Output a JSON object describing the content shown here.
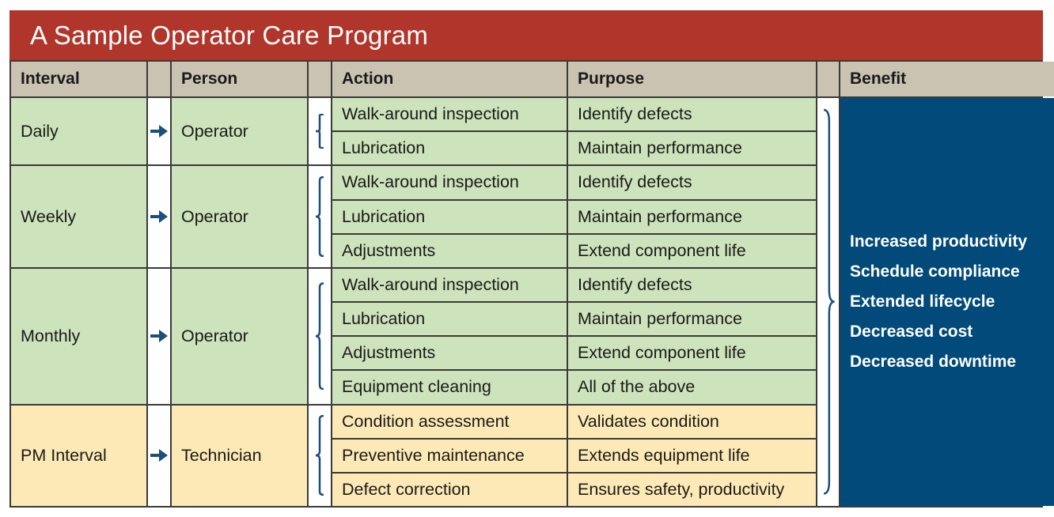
{
  "title": "A Sample Operator Care Program",
  "headers": {
    "interval": "Interval",
    "person": "Person",
    "action": "Action",
    "purpose": "Purpose",
    "benefit": "Benefit"
  },
  "colors": {
    "title_bar": "#b0352b",
    "header": "#cbc3b1",
    "operator_rows": "#cde3bb",
    "technician_rows": "#fde9b5",
    "benefit": "#024a7a",
    "icons": "#1d4f7c"
  },
  "groups": [
    {
      "interval": "Daily",
      "person": "Operator",
      "tone": "g",
      "rows": [
        {
          "action": "Walk-around inspection",
          "purpose": "Identify defects"
        },
        {
          "action": "Lubrication",
          "purpose": "Maintain performance"
        }
      ]
    },
    {
      "interval": "Weekly",
      "person": "Operator",
      "tone": "g",
      "rows": [
        {
          "action": "Walk-around inspection",
          "purpose": "Identify defects"
        },
        {
          "action": "Lubrication",
          "purpose": "Maintain performance"
        },
        {
          "action": "Adjustments",
          "purpose": "Extend component life"
        }
      ]
    },
    {
      "interval": "Monthly",
      "person": "Operator",
      "tone": "g",
      "rows": [
        {
          "action": "Walk-around inspection",
          "purpose": "Identify defects"
        },
        {
          "action": "Lubrication",
          "purpose": "Maintain performance"
        },
        {
          "action": "Adjustments",
          "purpose": "Extend component life"
        },
        {
          "action": "Equipment cleaning",
          "purpose": "All of the above"
        }
      ]
    },
    {
      "interval": "PM Interval",
      "person": "Technician",
      "tone": "y",
      "rows": [
        {
          "action": "Condition assessment",
          "purpose": "Validates condition"
        },
        {
          "action": "Preventive maintenance",
          "purpose": "Extends equipment life"
        },
        {
          "action": "Defect correction",
          "purpose": "Ensures safety, productivity"
        }
      ]
    }
  ],
  "benefits": [
    "Increased productivity",
    "Schedule compliance",
    "Extended lifecycle",
    "Decreased cost",
    "Decreased downtime"
  ],
  "icons": {
    "arrow": "arrow-right-icon",
    "brace": "left-brace-icon",
    "benefit_brace": "right-brace-icon"
  }
}
